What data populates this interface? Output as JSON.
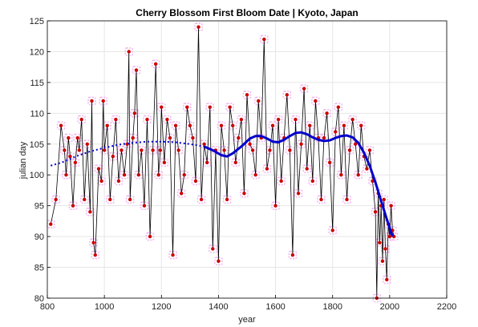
{
  "chart_data": {
    "type": "scatter",
    "title": "Cherry Blossom First Bloom Date | Kyoto, Japan",
    "xlabel": "year",
    "ylabel": "julian day",
    "xlim": [
      800,
      2200
    ],
    "ylim": [
      80,
      125
    ],
    "xticks": [
      "800",
      "1000",
      "1200",
      "1400",
      "1600",
      "1800",
      "2000",
      "2200"
    ],
    "yticks": [
      "80",
      "85",
      "90",
      "95",
      "100",
      "105",
      "110",
      "115",
      "120",
      "125"
    ],
    "grid": true,
    "legend": "none",
    "series": [
      {
        "kind": "observations",
        "color": "#cc0000",
        "halo_color": "#f0b8f0",
        "line_color": "#000000",
        "x": [
          812,
          830,
          848,
          860,
          866,
          874,
          880,
          890,
          898,
          906,
          912,
          920,
          930,
          940,
          950,
          956,
          962,
          968,
          980,
          990,
          996,
          1000,
          1010,
          1020,
          1030,
          1040,
          1050,
          1060,
          1070,
          1080,
          1086,
          1090,
          1100,
          1106,
          1112,
          1120,
          1130,
          1140,
          1150,
          1160,
          1170,
          1180,
          1190,
          1196,
          1200,
          1210,
          1220,
          1230,
          1240,
          1250,
          1260,
          1270,
          1280,
          1290,
          1300,
          1310,
          1320,
          1330,
          1340,
          1350,
          1360,
          1370,
          1380,
          1390,
          1400,
          1410,
          1420,
          1430,
          1440,
          1450,
          1460,
          1470,
          1480,
          1490,
          1500,
          1510,
          1520,
          1530,
          1540,
          1550,
          1560,
          1570,
          1580,
          1590,
          1600,
          1610,
          1620,
          1630,
          1640,
          1650,
          1660,
          1670,
          1680,
          1690,
          1700,
          1710,
          1720,
          1730,
          1740,
          1750,
          1760,
          1770,
          1780,
          1790,
          1800,
          1810,
          1820,
          1830,
          1840,
          1850,
          1860,
          1870,
          1880,
          1890,
          1900,
          1910,
          1920,
          1930,
          1940,
          1950,
          1955,
          1960,
          1965,
          1970,
          1975,
          1980,
          1985,
          1990,
          1995,
          2000,
          2005,
          2010,
          2015
        ],
        "y": [
          92,
          96,
          108,
          104,
          100,
          106,
          103,
          95,
          102,
          106,
          104,
          109,
          96,
          105,
          94,
          112,
          89,
          87,
          101,
          99,
          112,
          104,
          108,
          96,
          103,
          109,
          99,
          104,
          100,
          105,
          120,
          96,
          106,
          110,
          117,
          100,
          104,
          95,
          109,
          90,
          104,
          118,
          100,
          104,
          111,
          102,
          109,
          106,
          87,
          108,
          104,
          97,
          100,
          111,
          108,
          106,
          99,
          124,
          96,
          105,
          102,
          111,
          88,
          104,
          86,
          108,
          104,
          96,
          111,
          108,
          102,
          106,
          109,
          97,
          113,
          105,
          104,
          100,
          112,
          106,
          122,
          101,
          104,
          108,
          95,
          109,
          99,
          106,
          113,
          104,
          87,
          109,
          97,
          105,
          114,
          101,
          108,
          99,
          112,
          106,
          96,
          106,
          110,
          102,
          91,
          107,
          111,
          100,
          108,
          96,
          104,
          109,
          105,
          100,
          108,
          103,
          101,
          104,
          99,
          94,
          80,
          97,
          89,
          95,
          86,
          96,
          88,
          83,
          92,
          90,
          95,
          91,
          90
        ]
      },
      {
        "kind": "trend",
        "color": "#0000cc",
        "x": [
          812,
          850,
          900,
          950,
          1000,
          1050,
          1100,
          1150,
          1200,
          1250,
          1300,
          1350,
          1380,
          1410,
          1430,
          1450,
          1480,
          1510,
          1530,
          1550,
          1570,
          1590,
          1610,
          1630,
          1650,
          1670,
          1690,
          1710,
          1730,
          1750,
          1770,
          1790,
          1810,
          1830,
          1850,
          1870,
          1890,
          1910,
          1930,
          1950,
          1970,
          1990,
          2010
        ],
        "y": [
          101.5,
          102.0,
          103.0,
          103.8,
          104.4,
          104.9,
          105.2,
          105.4,
          105.4,
          105.3,
          105.0,
          104.6,
          104.0,
          103.2,
          103.0,
          103.5,
          104.6,
          105.9,
          106.3,
          106.3,
          105.9,
          105.4,
          105.3,
          105.7,
          106.3,
          106.8,
          106.9,
          106.6,
          106.1,
          105.7,
          105.5,
          105.6,
          106.0,
          106.3,
          106.4,
          106.1,
          105.2,
          103.6,
          101.5,
          98.8,
          95.8,
          92.8,
          90.0
        ]
      }
    ]
  }
}
